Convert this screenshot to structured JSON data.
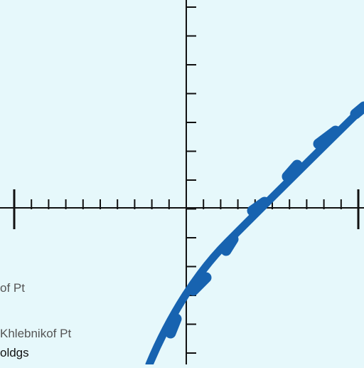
{
  "map": {
    "background_color": "#e6f8fb",
    "grid_line_color": "#111111",
    "route_color": "#1763b0",
    "labels": [
      {
        "text": "of Pt",
        "color": "#555555"
      },
      {
        "text": "Khlebnikof Pt",
        "color": "#555555"
      },
      {
        "text": "oldgs",
        "color": "#111111"
      }
    ]
  }
}
